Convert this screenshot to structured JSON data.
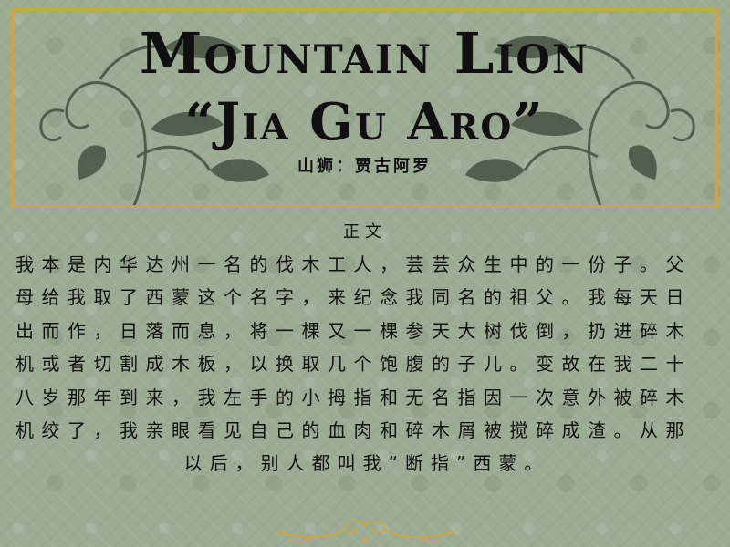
{
  "title": {
    "main": "Mountain Lion",
    "subtitle": "“Jia Gu Aro”",
    "chinese": "山狮：贾古阿罗"
  },
  "section": {
    "heading": "正文"
  },
  "body": {
    "lines": [
      "我本是内华达州一名的伐木工人，芸芸众生中的一份子。父",
      "母给我取了西蒙这个名字，来纪念我同名的祖父。我每天日",
      "出而作，日落而息，将一棵又一棵参天大树伐倒，扔进碎木",
      "机或者切割成木板，以换取几个饱腹的子儿。变故在我二十",
      "八岁那年到来，我左手的小拇指和无名指因一次意外被碎木",
      "机绞了，我亲眼看见自己的血肉和碎木屑被搅碎成渣。从那",
      "以后，别人都叫我“断指”西蒙。"
    ]
  },
  "colors": {
    "background": "#9cac94",
    "frame": "#c9a646",
    "vine": "#3e4a3a",
    "ornament": "#c9a646"
  },
  "decorations": {
    "vine_left": "vine-leaf-ornament",
    "vine_right": "vine-leaf-ornament",
    "bottom": "scroll-flourish-ornament"
  }
}
